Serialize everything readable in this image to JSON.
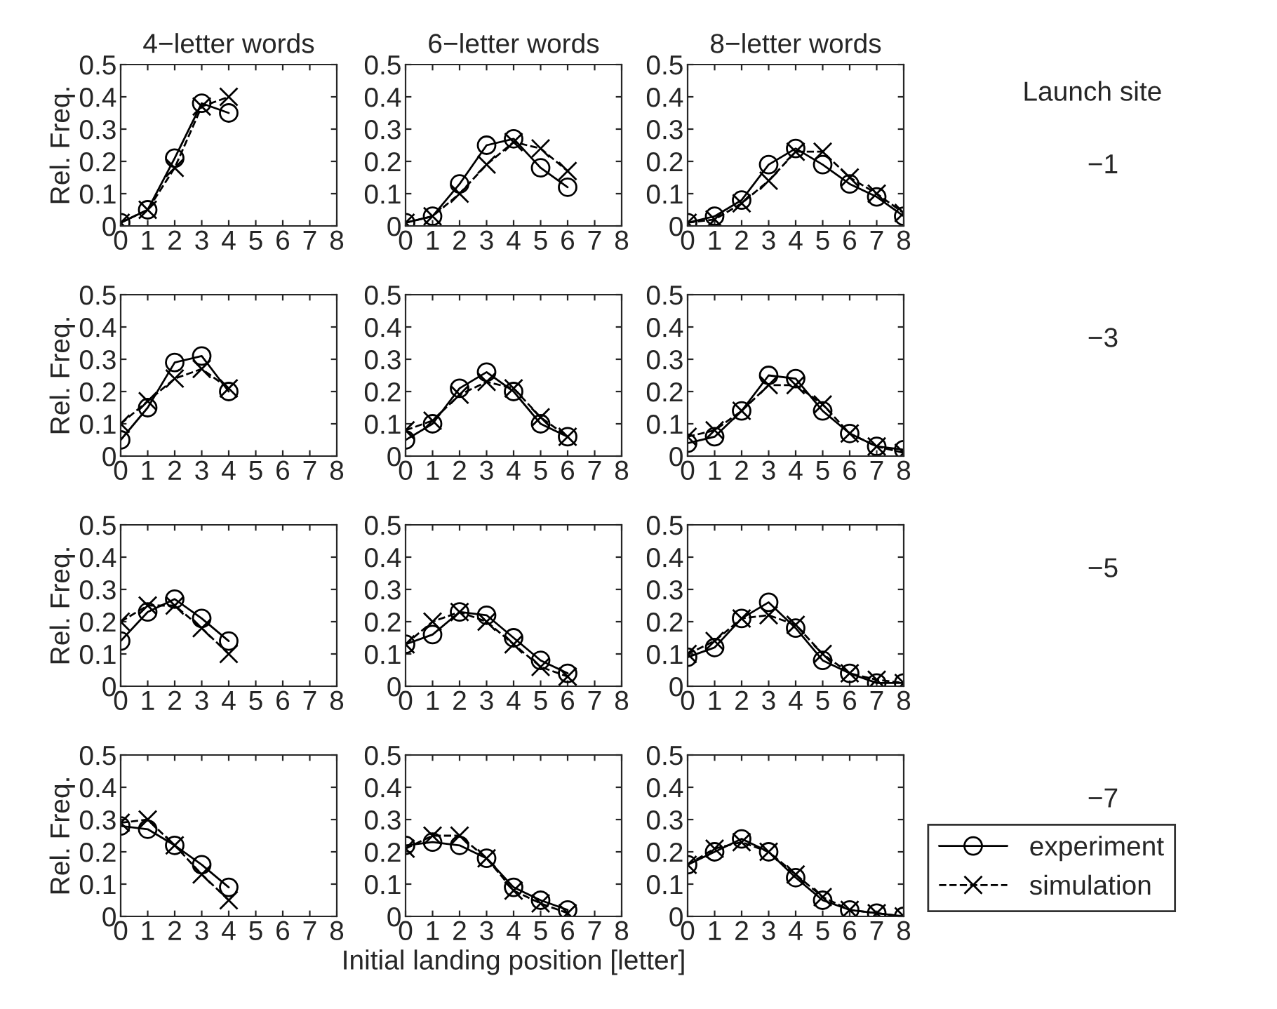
{
  "chart_data": [
    {
      "type": "line",
      "title": "4−letter words",
      "ylabel": "Rel. Freq.",
      "xlim": [
        0,
        8
      ],
      "xticks": [
        0,
        1,
        2,
        3,
        4,
        5,
        6,
        7,
        8
      ],
      "ylim": [
        0,
        0.5
      ],
      "yticks": [
        0,
        0.1,
        0.2,
        0.3,
        0.4,
        0.5
      ],
      "grid": false,
      "legend": false,
      "series": [
        {
          "color": "#000000",
          "marker": "circle",
          "line_style": "solid",
          "x": [
            0,
            1,
            2,
            3,
            4
          ],
          "values": [
            0.01,
            0.05,
            0.21,
            0.38,
            0.35
          ]
        },
        {
          "color": "#000000",
          "marker": "cross",
          "line_style": "dashed",
          "x": [
            0,
            1,
            2,
            3,
            4
          ],
          "values": [
            0.01,
            0.05,
            0.18,
            0.37,
            0.4
          ]
        }
      ]
    },
    {
      "type": "line",
      "title": "6−letter words",
      "xlim": [
        0,
        8
      ],
      "xticks": [
        0,
        1,
        2,
        3,
        4,
        5,
        6,
        7,
        8
      ],
      "ylim": [
        0,
        0.5
      ],
      "yticks": [
        0,
        0.1,
        0.2,
        0.3,
        0.4,
        0.5
      ],
      "grid": false,
      "legend": false,
      "series": [
        {
          "color": "#000000",
          "marker": "circle",
          "line_style": "solid",
          "x": [
            0,
            1,
            2,
            3,
            4,
            5,
            6
          ],
          "values": [
            0.01,
            0.03,
            0.13,
            0.25,
            0.27,
            0.18,
            0.12
          ]
        },
        {
          "color": "#000000",
          "marker": "cross",
          "line_style": "dashed",
          "x": [
            0,
            1,
            2,
            3,
            4,
            5,
            6
          ],
          "values": [
            0.01,
            0.03,
            0.1,
            0.19,
            0.26,
            0.24,
            0.17
          ]
        }
      ]
    },
    {
      "type": "line",
      "title": "8−letter words",
      "xlim": [
        0,
        8
      ],
      "xticks": [
        0,
        1,
        2,
        3,
        4,
        5,
        6,
        7,
        8
      ],
      "ylim": [
        0,
        0.5
      ],
      "yticks": [
        0,
        0.1,
        0.2,
        0.3,
        0.4,
        0.5
      ],
      "grid": false,
      "legend": false,
      "annotations": [
        "Launch site",
        "−1"
      ],
      "series": [
        {
          "color": "#000000",
          "marker": "circle",
          "line_style": "solid",
          "x": [
            0,
            1,
            2,
            3,
            4,
            5,
            6,
            7,
            8
          ],
          "values": [
            0.01,
            0.03,
            0.08,
            0.19,
            0.24,
            0.19,
            0.13,
            0.09,
            0.03
          ]
        },
        {
          "color": "#000000",
          "marker": "cross",
          "line_style": "dashed",
          "x": [
            0,
            1,
            2,
            3,
            4,
            5,
            6,
            7,
            8
          ],
          "values": [
            0.01,
            0.02,
            0.07,
            0.14,
            0.23,
            0.23,
            0.15,
            0.1,
            0.04
          ]
        }
      ]
    },
    {
      "type": "line",
      "ylabel": "Rel. Freq.",
      "xlim": [
        0,
        8
      ],
      "xticks": [
        0,
        1,
        2,
        3,
        4,
        5,
        6,
        7,
        8
      ],
      "ylim": [
        0,
        0.5
      ],
      "yticks": [
        0,
        0.1,
        0.2,
        0.3,
        0.4,
        0.5
      ],
      "grid": false,
      "legend": false,
      "series": [
        {
          "color": "#000000",
          "marker": "circle",
          "line_style": "solid",
          "x": [
            0,
            1,
            2,
            3,
            4
          ],
          "values": [
            0.05,
            0.15,
            0.29,
            0.31,
            0.2
          ]
        },
        {
          "color": "#000000",
          "marker": "cross",
          "line_style": "dashed",
          "x": [
            0,
            1,
            2,
            3,
            4
          ],
          "values": [
            0.1,
            0.17,
            0.24,
            0.27,
            0.21
          ]
        }
      ]
    },
    {
      "type": "line",
      "xlim": [
        0,
        8
      ],
      "xticks": [
        0,
        1,
        2,
        3,
        4,
        5,
        6,
        7,
        8
      ],
      "ylim": [
        0,
        0.5
      ],
      "yticks": [
        0,
        0.1,
        0.2,
        0.3,
        0.4,
        0.5
      ],
      "grid": false,
      "legend": false,
      "series": [
        {
          "color": "#000000",
          "marker": "circle",
          "line_style": "solid",
          "x": [
            0,
            1,
            2,
            3,
            4,
            5,
            6
          ],
          "values": [
            0.05,
            0.1,
            0.21,
            0.26,
            0.2,
            0.1,
            0.06
          ]
        },
        {
          "color": "#000000",
          "marker": "cross",
          "line_style": "dashed",
          "x": [
            0,
            1,
            2,
            3,
            4,
            5,
            6
          ],
          "values": [
            0.08,
            0.11,
            0.19,
            0.23,
            0.21,
            0.12,
            0.06
          ]
        }
      ]
    },
    {
      "type": "line",
      "xlim": [
        0,
        8
      ],
      "xticks": [
        0,
        1,
        2,
        3,
        4,
        5,
        6,
        7,
        8
      ],
      "ylim": [
        0,
        0.5
      ],
      "yticks": [
        0,
        0.1,
        0.2,
        0.3,
        0.4,
        0.5
      ],
      "grid": false,
      "legend": false,
      "annotations": [
        "−3"
      ],
      "series": [
        {
          "color": "#000000",
          "marker": "circle",
          "line_style": "solid",
          "x": [
            0,
            1,
            2,
            3,
            4,
            5,
            6,
            7,
            8
          ],
          "values": [
            0.04,
            0.06,
            0.14,
            0.25,
            0.24,
            0.14,
            0.07,
            0.03,
            0.02
          ]
        },
        {
          "color": "#000000",
          "marker": "cross",
          "line_style": "dashed",
          "x": [
            0,
            1,
            2,
            3,
            4,
            5,
            6,
            7,
            8
          ],
          "values": [
            0.06,
            0.08,
            0.14,
            0.22,
            0.22,
            0.16,
            0.07,
            0.03,
            0.01
          ]
        }
      ]
    },
    {
      "type": "line",
      "ylabel": "Rel. Freq.",
      "xlim": [
        0,
        8
      ],
      "xticks": [
        0,
        1,
        2,
        3,
        4,
        5,
        6,
        7,
        8
      ],
      "ylim": [
        0,
        0.5
      ],
      "yticks": [
        0,
        0.1,
        0.2,
        0.3,
        0.4,
        0.5
      ],
      "grid": false,
      "legend": false,
      "series": [
        {
          "color": "#000000",
          "marker": "circle",
          "line_style": "solid",
          "x": [
            0,
            1,
            2,
            3,
            4
          ],
          "values": [
            0.14,
            0.23,
            0.27,
            0.21,
            0.14
          ]
        },
        {
          "color": "#000000",
          "marker": "cross",
          "line_style": "dashed",
          "x": [
            0,
            1,
            2,
            3,
            4
          ],
          "values": [
            0.2,
            0.25,
            0.25,
            0.18,
            0.1
          ]
        }
      ]
    },
    {
      "type": "line",
      "xlim": [
        0,
        8
      ],
      "xticks": [
        0,
        1,
        2,
        3,
        4,
        5,
        6,
        7,
        8
      ],
      "ylim": [
        0,
        0.5
      ],
      "yticks": [
        0,
        0.1,
        0.2,
        0.3,
        0.4,
        0.5
      ],
      "grid": false,
      "legend": false,
      "series": [
        {
          "color": "#000000",
          "marker": "circle",
          "line_style": "solid",
          "x": [
            0,
            1,
            2,
            3,
            4,
            5,
            6
          ],
          "values": [
            0.13,
            0.16,
            0.23,
            0.22,
            0.15,
            0.08,
            0.04
          ]
        },
        {
          "color": "#000000",
          "marker": "cross",
          "line_style": "dashed",
          "x": [
            0,
            1,
            2,
            3,
            4,
            5,
            6
          ],
          "values": [
            0.13,
            0.2,
            0.23,
            0.2,
            0.13,
            0.06,
            0.03
          ]
        }
      ]
    },
    {
      "type": "line",
      "xlim": [
        0,
        8
      ],
      "xticks": [
        0,
        1,
        2,
        3,
        4,
        5,
        6,
        7,
        8
      ],
      "ylim": [
        0,
        0.5
      ],
      "yticks": [
        0,
        0.1,
        0.2,
        0.3,
        0.4,
        0.5
      ],
      "grid": false,
      "legend": false,
      "annotations": [
        "−5"
      ],
      "series": [
        {
          "color": "#000000",
          "marker": "circle",
          "line_style": "solid",
          "x": [
            0,
            1,
            2,
            3,
            4,
            5,
            6,
            7,
            8
          ],
          "values": [
            0.09,
            0.12,
            0.21,
            0.26,
            0.18,
            0.08,
            0.04,
            0.01,
            0.01
          ]
        },
        {
          "color": "#000000",
          "marker": "cross",
          "line_style": "dashed",
          "x": [
            0,
            1,
            2,
            3,
            4,
            5,
            6,
            7,
            8
          ],
          "values": [
            0.1,
            0.14,
            0.21,
            0.22,
            0.19,
            0.1,
            0.04,
            0.02,
            0.01
          ]
        }
      ]
    },
    {
      "type": "line",
      "ylabel": "Rel. Freq.",
      "xlim": [
        0,
        8
      ],
      "xticks": [
        0,
        1,
        2,
        3,
        4,
        5,
        6,
        7,
        8
      ],
      "ylim": [
        0,
        0.5
      ],
      "yticks": [
        0,
        0.1,
        0.2,
        0.3,
        0.4,
        0.5
      ],
      "grid": false,
      "legend": false,
      "series": [
        {
          "color": "#000000",
          "marker": "circle",
          "line_style": "solid",
          "x": [
            0,
            1,
            2,
            3,
            4
          ],
          "values": [
            0.28,
            0.27,
            0.22,
            0.16,
            0.09
          ]
        },
        {
          "color": "#000000",
          "marker": "cross",
          "line_style": "dashed",
          "x": [
            0,
            1,
            2,
            3,
            4
          ],
          "values": [
            0.29,
            0.3,
            0.22,
            0.13,
            0.05
          ]
        }
      ]
    },
    {
      "type": "line",
      "xlabel": "Initial landing position [letter]",
      "xlim": [
        0,
        8
      ],
      "xticks": [
        0,
        1,
        2,
        3,
        4,
        5,
        6,
        7,
        8
      ],
      "ylim": [
        0,
        0.5
      ],
      "yticks": [
        0,
        0.1,
        0.2,
        0.3,
        0.4,
        0.5
      ],
      "grid": false,
      "legend": false,
      "series": [
        {
          "color": "#000000",
          "marker": "circle",
          "line_style": "solid",
          "x": [
            0,
            1,
            2,
            3,
            4,
            5,
            6
          ],
          "values": [
            0.22,
            0.23,
            0.22,
            0.18,
            0.09,
            0.05,
            0.02
          ]
        },
        {
          "color": "#000000",
          "marker": "cross",
          "line_style": "dashed",
          "x": [
            0,
            1,
            2,
            3,
            4,
            5,
            6
          ],
          "values": [
            0.21,
            0.25,
            0.25,
            0.18,
            0.08,
            0.04,
            0.01
          ]
        }
      ]
    },
    {
      "type": "line",
      "xlim": [
        0,
        8
      ],
      "xticks": [
        0,
        1,
        2,
        3,
        4,
        5,
        6,
        7,
        8
      ],
      "ylim": [
        0,
        0.5
      ],
      "yticks": [
        0,
        0.1,
        0.2,
        0.3,
        0.4,
        0.5
      ],
      "grid": false,
      "legend": "right",
      "annotations": [
        "−7"
      ],
      "series": [
        {
          "name": "experiment",
          "color": "#000000",
          "marker": "circle",
          "line_style": "solid",
          "x": [
            0,
            1,
            2,
            3,
            4,
            5,
            6,
            7,
            8
          ],
          "values": [
            0.16,
            0.2,
            0.24,
            0.2,
            0.12,
            0.05,
            0.02,
            0.01,
            0.0
          ]
        },
        {
          "name": "simulation",
          "color": "#000000",
          "marker": "cross",
          "line_style": "dashed",
          "x": [
            0,
            1,
            2,
            3,
            4,
            5,
            6,
            7,
            8
          ],
          "values": [
            0.16,
            0.21,
            0.23,
            0.2,
            0.13,
            0.06,
            0.02,
            0.01,
            0.0
          ]
        }
      ]
    }
  ]
}
